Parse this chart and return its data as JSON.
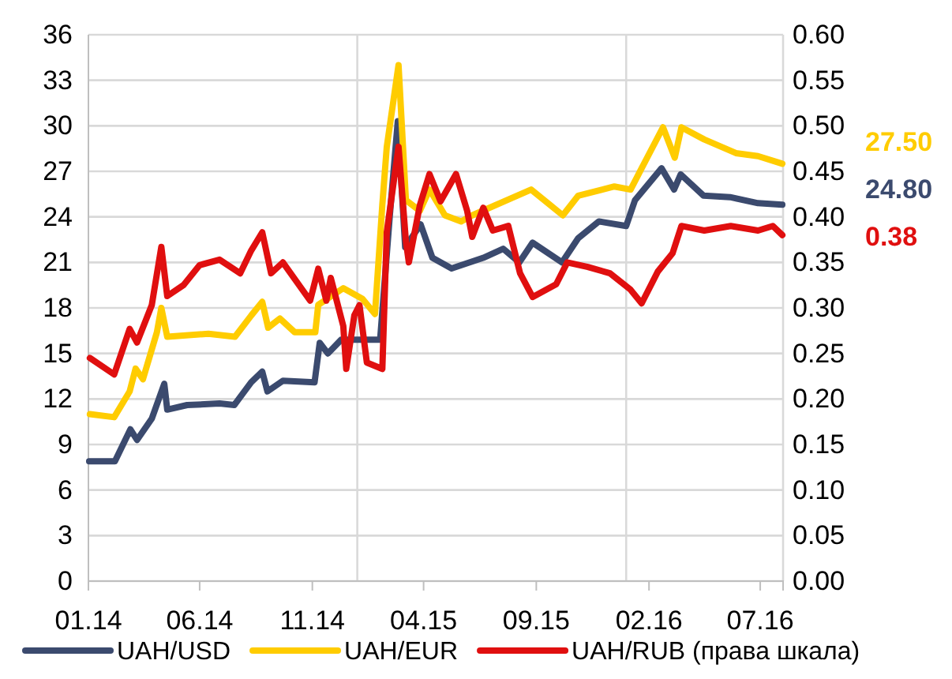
{
  "chart_data": {
    "type": "line",
    "xlim": [
      "2014-01-01",
      "2016-08-01"
    ],
    "xticks": [
      {
        "value": "2014-01-01",
        "label": "01.14"
      },
      {
        "value": "2014-06-01",
        "label": "06.14"
      },
      {
        "value": "2014-11-01",
        "label": "11.14"
      },
      {
        "value": "2015-04-01",
        "label": "04.15"
      },
      {
        "value": "2015-09-01",
        "label": "09.15"
      },
      {
        "value": "2016-02-01",
        "label": "02.16"
      },
      {
        "value": "2016-07-01",
        "label": "07.16"
      }
    ],
    "ylim": [
      0,
      36
    ],
    "yticks": [
      0,
      3,
      6,
      9,
      12,
      15,
      18,
      21,
      24,
      27,
      30,
      33,
      36
    ],
    "y2lim": [
      0,
      0.6
    ],
    "y2ticks": [
      {
        "value": 0,
        "label": "0.00"
      },
      {
        "value": 0.05,
        "label": "0.05"
      },
      {
        "value": 0.1,
        "label": "0.10"
      },
      {
        "value": 0.15,
        "label": "0.15"
      },
      {
        "value": 0.2,
        "label": "0.20"
      },
      {
        "value": 0.25,
        "label": "0.25"
      },
      {
        "value": 0.3,
        "label": "0.30"
      },
      {
        "value": 0.35,
        "label": "0.35"
      },
      {
        "value": 0.4,
        "label": "0.40"
      },
      {
        "value": 0.45,
        "label": "0.45"
      },
      {
        "value": 0.5,
        "label": "0.50"
      },
      {
        "value": 0.55,
        "label": "0.55"
      },
      {
        "value": 0.6,
        "label": "0.60"
      }
    ],
    "grid": "y",
    "legend": "bottom",
    "marker": "none",
    "line_style": "solid",
    "ref_lines": [
      {
        "axis": "x",
        "value": "2015-01-01",
        "color": "#d9d9d9"
      },
      {
        "axis": "x",
        "value": "2016-01-01",
        "color": "#d9d9d9"
      }
    ],
    "annotations": [
      "24.80",
      "27.50",
      "0.38"
    ],
    "series": [
      {
        "name": "UAH/USD",
        "color": "#3b4a6e",
        "x": [
          "2014-01-02",
          "2014-02-06",
          "2014-02-27",
          "2014-03-08",
          "2014-03-28",
          "2014-04-14",
          "2014-04-18",
          "2014-05-15",
          "2014-06-28",
          "2014-07-18",
          "2014-08-10",
          "2014-08-25",
          "2014-09-01",
          "2014-09-22",
          "2014-11-04",
          "2014-11-11",
          "2014-11-22",
          "2014-12-10",
          "2015-02-01",
          "2015-02-14",
          "2015-02-25",
          "2015-03-07",
          "2015-03-28",
          "2015-04-13",
          "2015-05-09",
          "2015-06-21",
          "2015-07-18",
          "2015-08-09",
          "2015-08-27",
          "2015-10-06",
          "2015-10-28",
          "2015-11-25",
          "2016-01-01",
          "2016-01-13",
          "2016-02-18",
          "2016-03-06",
          "2016-03-15",
          "2016-04-15",
          "2016-05-21",
          "2016-06-28",
          "2016-07-31"
        ],
        "values": [
          7.9,
          7.9,
          10.0,
          9.3,
          10.7,
          13.0,
          11.3,
          11.6,
          11.7,
          11.6,
          13.1,
          13.8,
          12.5,
          13.2,
          13.1,
          15.7,
          15.0,
          15.9,
          15.9,
          24.0,
          30.3,
          22.0,
          23.5,
          21.3,
          20.6,
          21.3,
          21.9,
          21.0,
          22.3,
          21.0,
          22.6,
          23.7,
          23.4,
          25.1,
          27.2,
          25.8,
          26.8,
          25.4,
          25.3,
          24.9,
          24.8
        ]
      },
      {
        "name": "UAH/EUR",
        "color": "#ffcc00",
        "x": [
          "2014-01-03",
          "2014-02-05",
          "2014-02-26",
          "2014-03-06",
          "2014-03-16",
          "2014-04-04",
          "2014-04-10",
          "2014-04-18",
          "2014-06-13",
          "2014-07-19",
          "2014-08-10",
          "2014-08-25",
          "2014-09-02",
          "2014-09-18",
          "2014-10-08",
          "2014-11-05",
          "2014-11-09",
          "2014-12-13",
          "2015-01-08",
          "2015-01-25",
          "2015-02-04",
          "2015-02-10",
          "2015-02-26",
          "2015-03-08",
          "2015-03-27",
          "2015-04-09",
          "2015-04-30",
          "2015-05-22",
          "2015-06-06",
          "2015-08-25",
          "2015-10-07",
          "2015-10-28",
          "2015-12-16",
          "2016-01-07",
          "2016-01-22",
          "2016-02-20",
          "2016-03-07",
          "2016-03-16",
          "2016-04-16",
          "2016-05-29",
          "2016-06-28",
          "2016-07-31"
        ],
        "values": [
          11.0,
          10.8,
          12.5,
          14.0,
          13.3,
          16.4,
          18.0,
          16.1,
          16.3,
          16.1,
          17.5,
          18.4,
          16.7,
          17.3,
          16.4,
          16.4,
          18.2,
          19.3,
          18.6,
          17.6,
          24.8,
          28.6,
          34.0,
          25.1,
          24.4,
          25.8,
          24.1,
          23.7,
          24.1,
          25.8,
          24.1,
          25.4,
          26.0,
          25.8,
          27.2,
          29.9,
          27.9,
          29.9,
          29.1,
          28.2,
          28.0,
          27.5
        ]
      },
      {
        "name": "UAH/RUB (права шкала)",
        "color": "#e00f0f",
        "axis": "y2",
        "x": [
          "2014-01-03",
          "2014-02-05",
          "2014-02-26",
          "2014-03-08",
          "2014-03-28",
          "2014-04-10",
          "2014-04-18",
          "2014-05-10",
          "2014-06-01",
          "2014-06-28",
          "2014-07-26",
          "2014-08-10",
          "2014-08-25",
          "2014-09-06",
          "2014-09-22",
          "2014-10-29",
          "2014-11-09",
          "2014-11-20",
          "2014-11-26",
          "2014-12-13",
          "2014-12-17",
          "2014-12-28",
          "2015-01-04",
          "2015-01-14",
          "2015-02-04",
          "2015-02-10",
          "2015-02-26",
          "2015-03-08",
          "2015-03-12",
          "2015-03-27",
          "2015-04-09",
          "2015-04-24",
          "2015-05-15",
          "2015-05-30",
          "2015-06-06",
          "2015-06-21",
          "2015-07-04",
          "2015-07-25",
          "2015-08-10",
          "2015-08-27",
          "2015-09-28",
          "2015-10-13",
          "2015-11-10",
          "2015-12-10",
          "2016-01-07",
          "2016-01-22",
          "2016-02-13",
          "2016-03-04",
          "2016-03-16",
          "2016-04-16",
          "2016-05-22",
          "2016-06-28",
          "2016-07-18",
          "2016-07-31"
        ],
        "values": [
          0.245,
          0.227,
          0.277,
          0.262,
          0.303,
          0.367,
          0.313,
          0.325,
          0.347,
          0.353,
          0.338,
          0.363,
          0.383,
          0.338,
          0.35,
          0.308,
          0.343,
          0.308,
          0.333,
          0.28,
          0.233,
          0.292,
          0.303,
          0.24,
          0.233,
          0.383,
          0.477,
          0.373,
          0.35,
          0.413,
          0.447,
          0.417,
          0.447,
          0.407,
          0.378,
          0.41,
          0.385,
          0.39,
          0.338,
          0.312,
          0.326,
          0.35,
          0.345,
          0.338,
          0.32,
          0.305,
          0.34,
          0.36,
          0.39,
          0.385,
          0.39,
          0.385,
          0.39,
          0.38
        ]
      }
    ]
  }
}
